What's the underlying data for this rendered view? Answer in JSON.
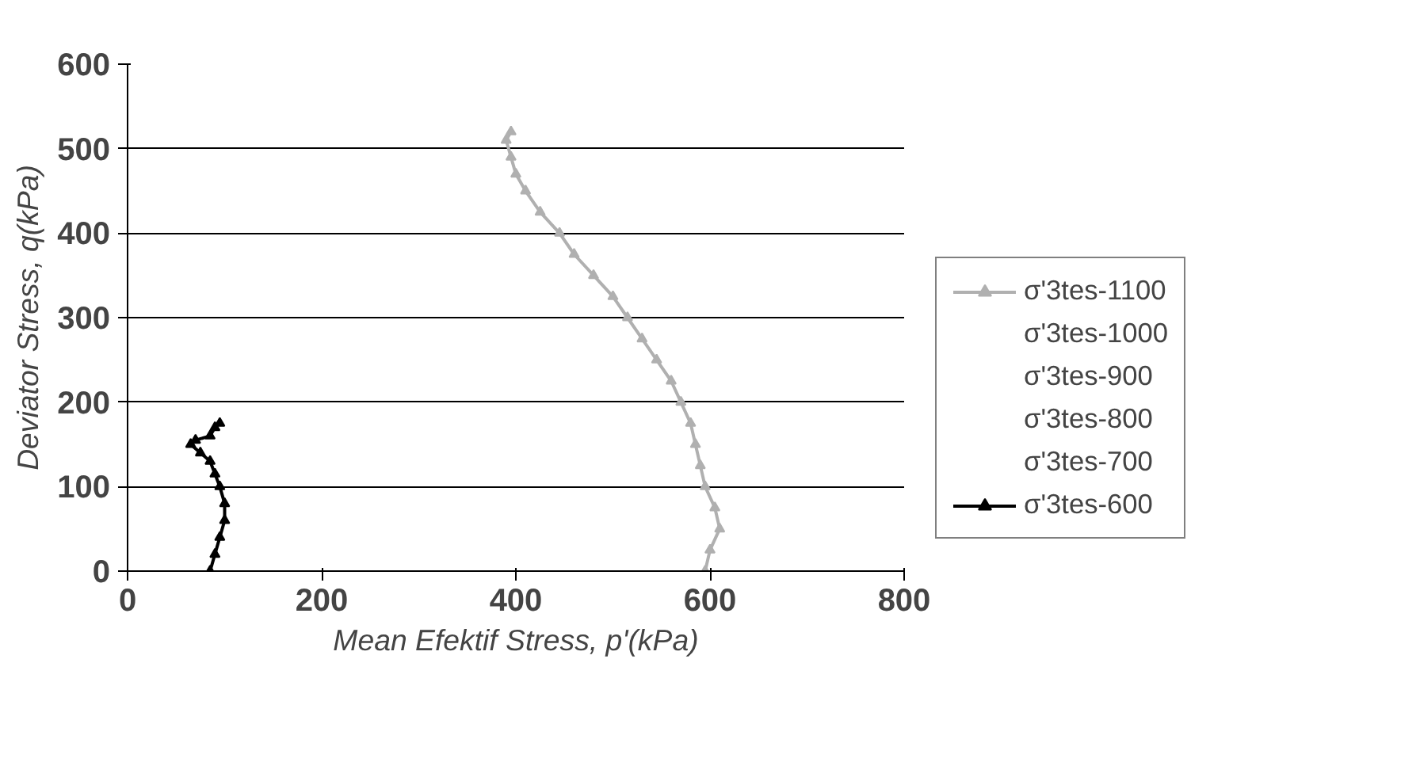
{
  "chart_data": {
    "type": "line",
    "xlabel": "Mean Efektif Stress, p'(kPa)",
    "ylabel": "Deviator Stress, q(kPa)",
    "xlim": [
      0,
      800
    ],
    "ylim": [
      0,
      600
    ],
    "xticks": [
      0,
      200,
      400,
      600,
      800
    ],
    "yticks": [
      0,
      100,
      200,
      300,
      400,
      500,
      600
    ],
    "grid": "y",
    "legend": "right",
    "marker": "triangle",
    "series": [
      {
        "name": "σ'3tes-1100",
        "color": "#b0b0b0",
        "x": [
          595,
          600,
          610,
          605,
          595,
          590,
          585,
          580,
          570,
          560,
          545,
          530,
          515,
          500,
          480,
          460,
          445,
          425,
          410,
          400,
          395,
          390,
          395
        ],
        "values": [
          0,
          25,
          50,
          75,
          100,
          125,
          150,
          175,
          200,
          225,
          250,
          275,
          300,
          325,
          350,
          375,
          400,
          425,
          450,
          470,
          490,
          510,
          520
        ]
      },
      {
        "name": "σ'3tes-1000"
      },
      {
        "name": "σ'3tes-900"
      },
      {
        "name": "σ'3tes-800"
      },
      {
        "name": "σ'3tes-700"
      },
      {
        "name": "σ'3tes-600",
        "color": "#000000",
        "x": [
          85,
          90,
          95,
          100,
          100,
          95,
          90,
          85,
          75,
          65,
          70,
          85,
          90,
          95
        ],
        "values": [
          0,
          20,
          40,
          60,
          80,
          100,
          115,
          130,
          140,
          150,
          155,
          160,
          170,
          175
        ]
      }
    ]
  }
}
